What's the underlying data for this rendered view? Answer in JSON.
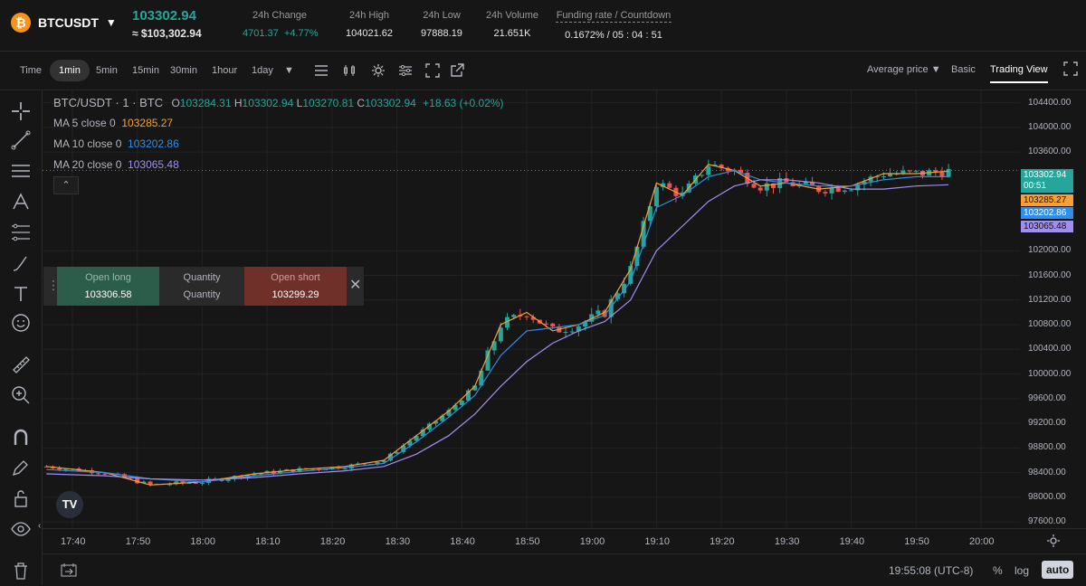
{
  "header": {
    "symbol": "BTCUSDT",
    "last_price": "103302.94",
    "usd_price": "≈ $103,302.94",
    "stats": [
      {
        "label": "24h Change",
        "value": "4701.37",
        "value2": "+4.77%"
      },
      {
        "label": "24h High",
        "value": "104021.62"
      },
      {
        "label": "24h Low",
        "value": "97888.19"
      },
      {
        "label": "24h Volume",
        "value": "21.651K"
      },
      {
        "label": "Funding rate / Countdown",
        "value": "0.1672% / 05 : 04 : 51"
      }
    ]
  },
  "toolbar": {
    "timeframes": [
      "Time",
      "1min",
      "5min",
      "15min",
      "30min",
      "1hour",
      "1day"
    ],
    "active_timeframe": "1min",
    "price_type": "Average price",
    "views": [
      "Basic",
      "Trading View"
    ],
    "active_view": "Trading View"
  },
  "legend": {
    "pair": "BTC/USDT · 1 · BTC",
    "o": "103284.31",
    "h": "103302.94",
    "l": "103270.81",
    "c": "103302.94",
    "change": "+18.63 (+0.02%)",
    "ma5_label": "MA 5 close 0",
    "ma5_value": "103285.27",
    "ma10_label": "MA 10 close 0",
    "ma10_value": "103202.86",
    "ma20_label": "MA 20 close 0",
    "ma20_value": "103065.48"
  },
  "order_panel": {
    "long_label": "Open long",
    "long_price": "103306.58",
    "qty_label": "Quantity",
    "qty_value": "Quantity",
    "short_label": "Open short",
    "short_price": "103299.29"
  },
  "price_tags": {
    "last": "103302.94",
    "countdown": "00:51",
    "ma5": "103285.27",
    "ma10": "103202.86",
    "ma20": "103065.48"
  },
  "colors": {
    "up": "#26a69a",
    "down": "#ef5350",
    "ma5": "#f7a035",
    "ma10": "#2f8fe8",
    "ma20": "#a08ff0"
  },
  "bottom": {
    "clock": "19:55:08 (UTC-8)",
    "pct": "%",
    "log": "log",
    "auto": "auto"
  },
  "chart_data": {
    "type": "line",
    "title": "BTC/USDT · 1 · BTC",
    "x_ticks": [
      "17:40",
      "17:50",
      "18:00",
      "18:10",
      "18:20",
      "18:30",
      "18:40",
      "18:50",
      "19:00",
      "19:10",
      "19:20",
      "19:30",
      "19:40",
      "19:50",
      "20:00"
    ],
    "y_ticks": [
      "104400.00",
      "104000.00",
      "103600.00",
      "102000.00",
      "101600.00",
      "101200.00",
      "100800.00",
      "100400.00",
      "100000.00",
      "99600.00",
      "99200.00",
      "98800.00",
      "98400.00",
      "98000.00",
      "97600.00"
    ],
    "ylim": [
      97500,
      104600
    ],
    "series": [
      {
        "name": "MA 5 close 0",
        "x": [
          "17:36",
          "17:45",
          "17:52",
          "18:00",
          "18:08",
          "18:15",
          "18:22",
          "18:28",
          "18:33",
          "18:38",
          "18:42",
          "18:46",
          "18:50",
          "18:54",
          "18:58",
          "19:02",
          "19:06",
          "19:10",
          "19:14",
          "19:18",
          "19:22",
          "19:26",
          "19:30",
          "19:35",
          "19:40",
          "19:45",
          "19:50",
          "19:55"
        ],
        "values": [
          98500,
          98400,
          98200,
          98250,
          98380,
          98450,
          98500,
          98600,
          99000,
          99400,
          99800,
          100800,
          101000,
          100700,
          100800,
          101000,
          101700,
          103100,
          102900,
          103400,
          103300,
          103050,
          103100,
          103000,
          103050,
          103250,
          103250,
          103290
        ]
      },
      {
        "name": "MA 10 close 0",
        "x": [
          "17:36",
          "17:45",
          "17:52",
          "18:00",
          "18:08",
          "18:15",
          "18:22",
          "18:28",
          "18:33",
          "18:38",
          "18:42",
          "18:46",
          "18:50",
          "18:54",
          "18:58",
          "19:02",
          "19:06",
          "19:10",
          "19:14",
          "19:18",
          "19:22",
          "19:26",
          "19:30",
          "19:35",
          "19:40",
          "19:45",
          "19:50",
          "19:55"
        ],
        "values": [
          98450,
          98400,
          98300,
          98250,
          98350,
          98420,
          98480,
          98550,
          98900,
          99300,
          99650,
          100300,
          100700,
          100750,
          100800,
          100950,
          101500,
          102700,
          102900,
          103200,
          103300,
          103150,
          103100,
          103050,
          103050,
          103150,
          103200,
          103200
        ]
      },
      {
        "name": "MA 20 close 0",
        "x": [
          "17:36",
          "17:45",
          "17:52",
          "18:00",
          "18:08",
          "18:15",
          "18:22",
          "18:28",
          "18:33",
          "18:38",
          "18:42",
          "18:46",
          "18:50",
          "18:54",
          "18:58",
          "19:02",
          "19:06",
          "19:10",
          "19:14",
          "19:18",
          "19:22",
          "19:26",
          "19:30",
          "19:35",
          "19:40",
          "19:45",
          "19:50",
          "19:55"
        ],
        "values": [
          98380,
          98350,
          98300,
          98280,
          98320,
          98380,
          98430,
          98500,
          98700,
          99000,
          99350,
          99800,
          100200,
          100500,
          100700,
          100850,
          101200,
          102000,
          102400,
          102800,
          103050,
          103150,
          103150,
          103100,
          103000,
          103000,
          103050,
          103070
        ]
      }
    ],
    "grid": true
  }
}
